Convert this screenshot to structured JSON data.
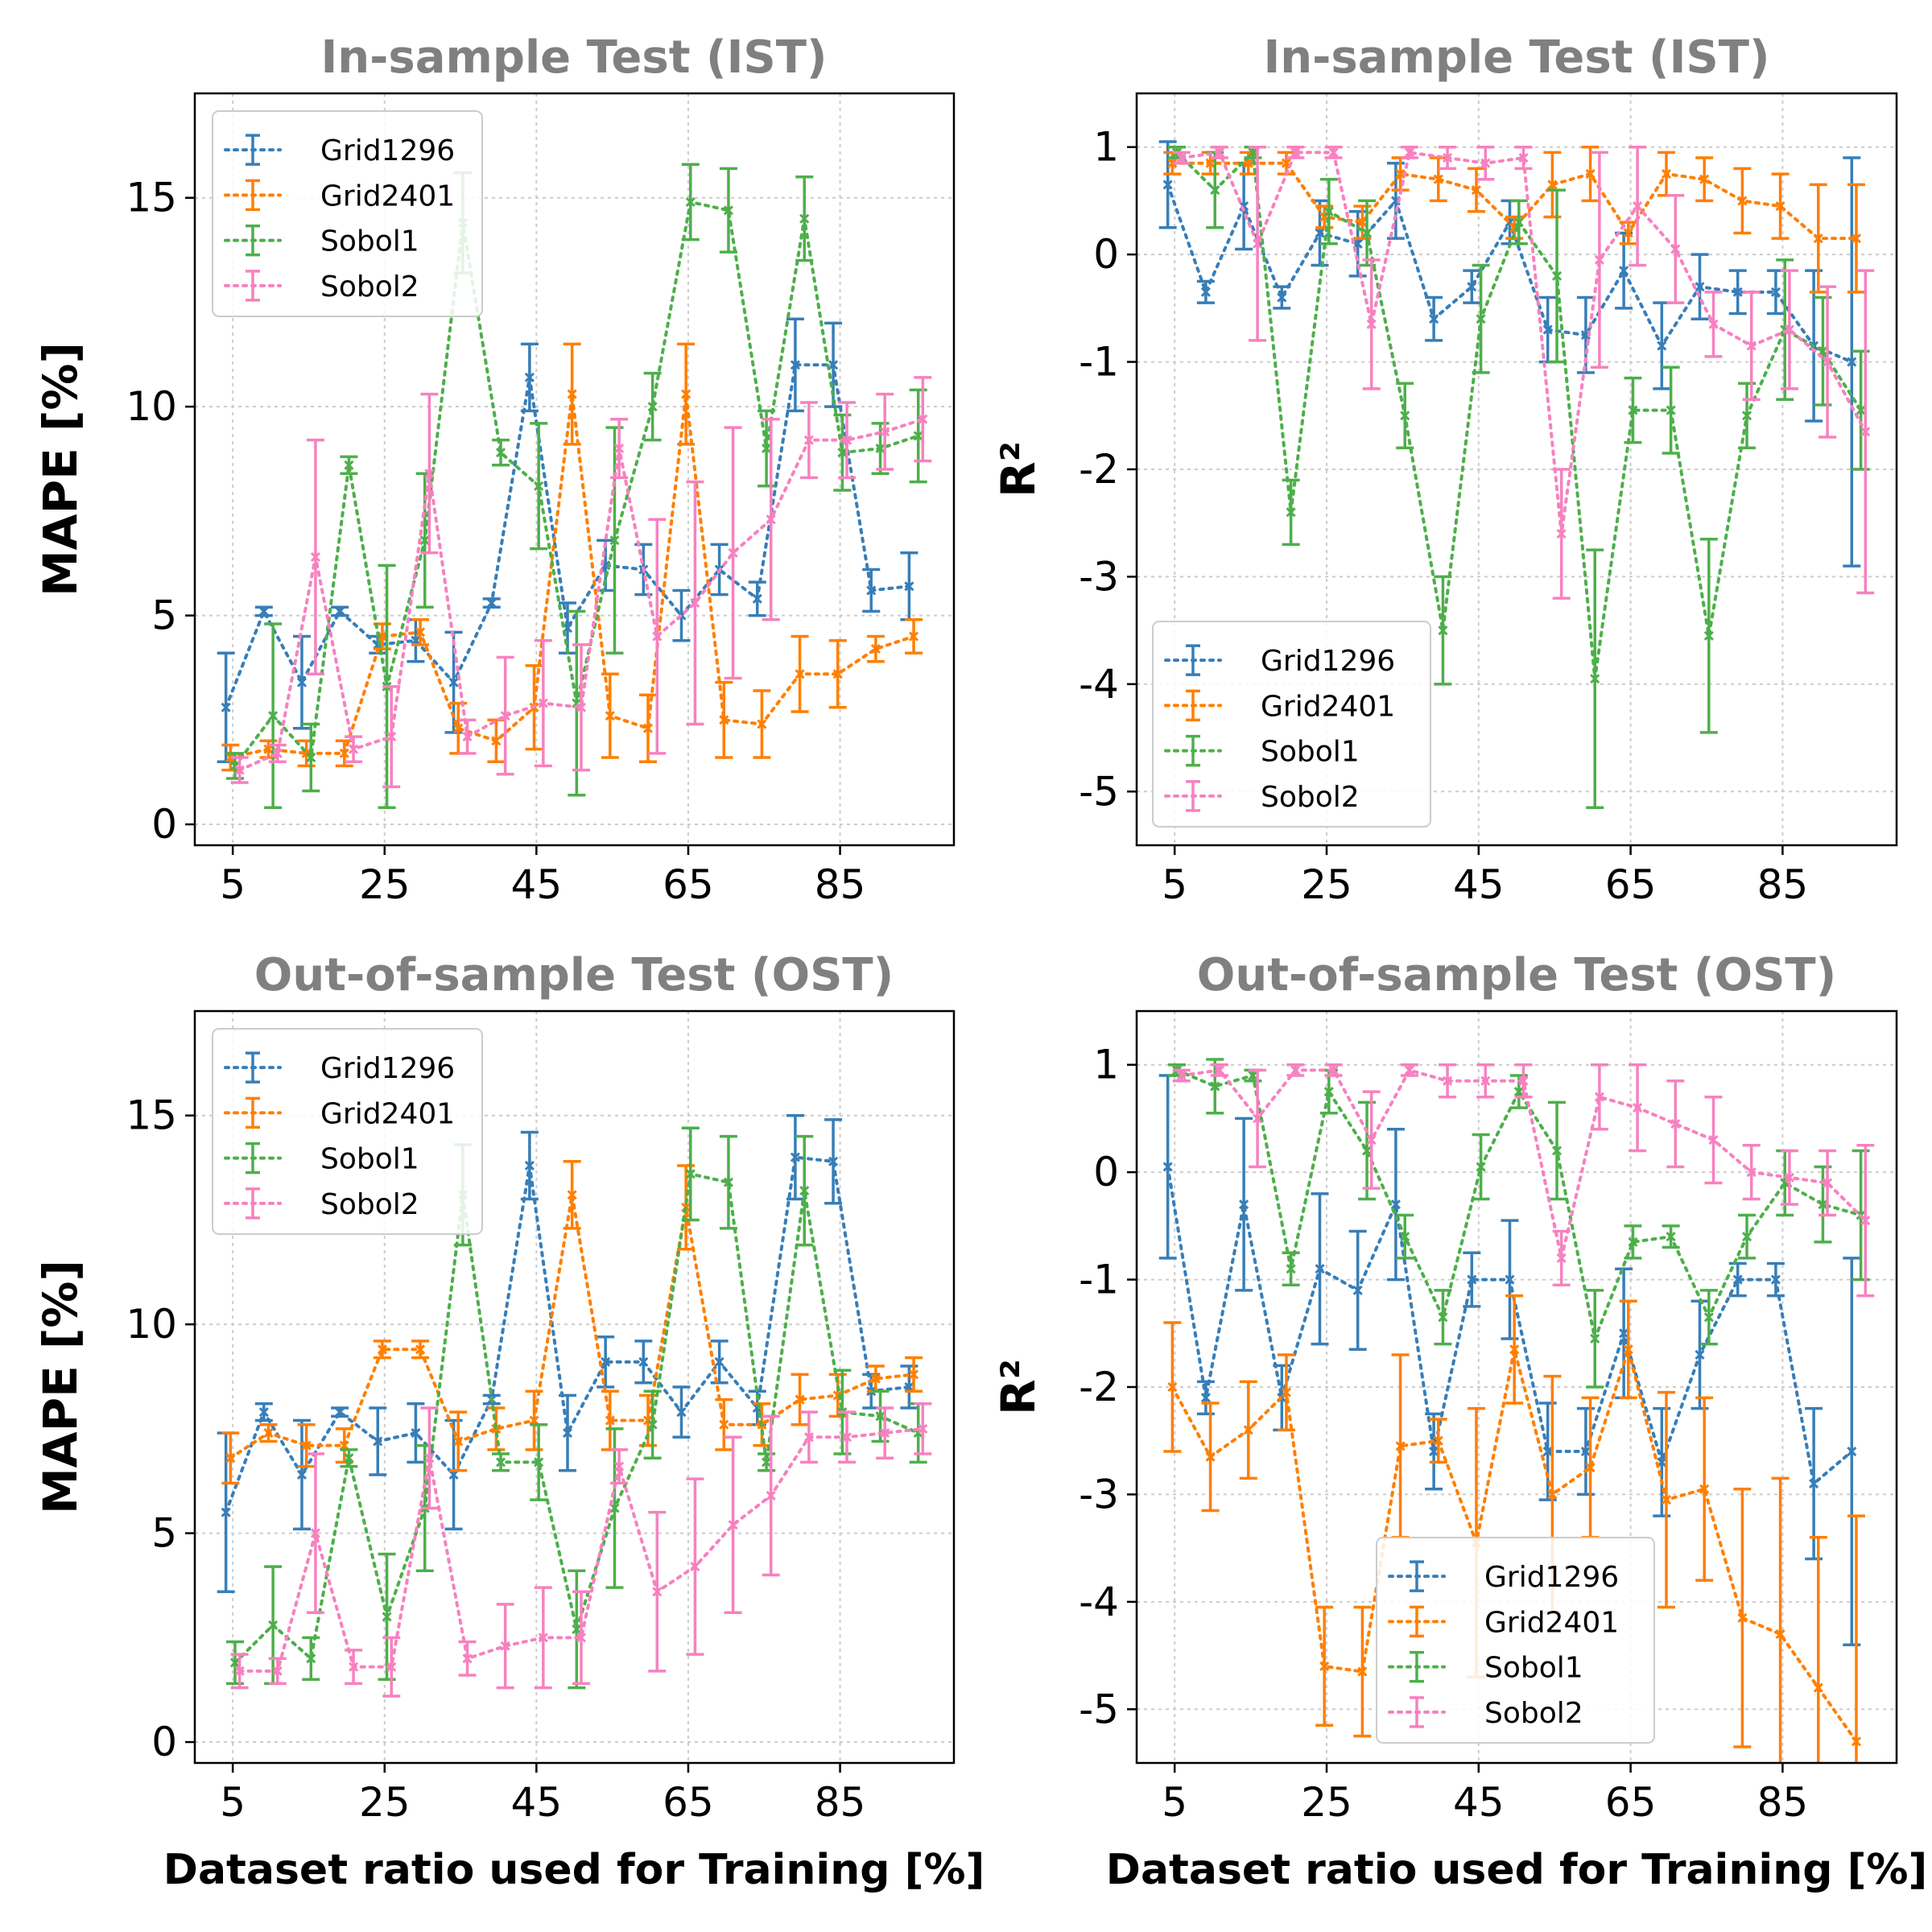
{
  "chart_data": [
    {
      "id": "ist_mape",
      "type": "line",
      "title": "In-sample Test (IST)",
      "ylabel": "MAPE [%]",
      "xlabel": "",
      "xlim": [
        0,
        100
      ],
      "ylim": [
        -0.5,
        17.5
      ],
      "xticks": [
        5,
        25,
        45,
        65,
        85
      ],
      "xtick_labels": [
        "5",
        "25",
        "45",
        "65",
        "85"
      ],
      "yticks": [
        0,
        5,
        10,
        15
      ],
      "ytick_labels": [
        "0",
        "5",
        "10",
        "15"
      ],
      "grid": true,
      "legend_position": "upper-left",
      "x": [
        5,
        10,
        15,
        20,
        25,
        30,
        35,
        40,
        45,
        50,
        55,
        60,
        65,
        70,
        75,
        80,
        85,
        90,
        95
      ],
      "series": [
        {
          "name": "Grid1296",
          "color": "#377eb8",
          "values": [
            2.8,
            5.1,
            3.4,
            5.1,
            4.3,
            4.4,
            3.4,
            5.3,
            10.7,
            4.7,
            6.2,
            6.1,
            5.0,
            6.1,
            5.4,
            11.0,
            11.0,
            5.6,
            5.7
          ],
          "errors": [
            1.3,
            0.1,
            1.1,
            0.1,
            0.2,
            0.5,
            1.2,
            0.1,
            0.8,
            0.6,
            0.6,
            0.6,
            0.6,
            0.6,
            0.4,
            1.1,
            1.0,
            0.5,
            0.8
          ]
        },
        {
          "name": "Grid2401",
          "color": "#ff7f00",
          "values": [
            1.6,
            1.8,
            1.7,
            1.7,
            4.5,
            4.6,
            2.3,
            2.0,
            2.8,
            10.3,
            2.6,
            2.3,
            10.3,
            2.5,
            2.4,
            3.6,
            3.6,
            4.2,
            4.5
          ],
          "errors": [
            0.3,
            0.2,
            0.3,
            0.3,
            0.3,
            0.3,
            0.6,
            0.5,
            1.0,
            1.2,
            1.0,
            0.8,
            1.2,
            0.9,
            0.8,
            0.9,
            0.8,
            0.3,
            0.4
          ]
        },
        {
          "name": "Sobol1",
          "color": "#4daf4a",
          "values": [
            1.4,
            2.6,
            1.6,
            8.6,
            3.3,
            6.8,
            14.4,
            8.9,
            8.1,
            2.9,
            6.8,
            10.0,
            14.9,
            14.7,
            9.0,
            14.5,
            8.9,
            9.0,
            9.3
          ],
          "errors": [
            0.3,
            2.2,
            0.8,
            0.2,
            2.9,
            1.6,
            1.2,
            0.3,
            1.5,
            2.2,
            2.7,
            0.8,
            0.9,
            1.0,
            0.9,
            1.0,
            0.9,
            0.6,
            1.1
          ]
        },
        {
          "name": "Sobol2",
          "color": "#f781bf",
          "values": [
            1.3,
            1.7,
            6.4,
            1.8,
            2.1,
            8.4,
            2.1,
            2.6,
            2.9,
            2.8,
            9.0,
            4.5,
            5.3,
            6.5,
            7.3,
            9.2,
            9.2,
            9.4,
            9.7
          ],
          "errors": [
            0.3,
            0.2,
            2.8,
            0.3,
            1.2,
            1.9,
            0.4,
            1.4,
            1.5,
            1.5,
            0.7,
            2.8,
            2.9,
            3.0,
            2.4,
            0.9,
            0.9,
            0.9,
            1.0
          ]
        }
      ]
    },
    {
      "id": "ist_r2",
      "type": "line",
      "title": "In-sample Test (IST)",
      "ylabel": "R²",
      "xlabel": "",
      "xlim": [
        0,
        100
      ],
      "ylim": [
        -5.5,
        1.5
      ],
      "xticks": [
        5,
        25,
        45,
        65,
        85
      ],
      "xtick_labels": [
        "5",
        "25",
        "45",
        "65",
        "85"
      ],
      "yticks": [
        1,
        0,
        -1,
        -2,
        -3,
        -4,
        -5
      ],
      "ytick_labels": [
        "1",
        "0",
        "-1",
        "-2",
        "-3",
        "-4",
        "-5"
      ],
      "grid": true,
      "legend_position": "lower-left",
      "x": [
        5,
        10,
        15,
        20,
        25,
        30,
        35,
        40,
        45,
        50,
        55,
        60,
        65,
        70,
        75,
        80,
        85,
        90,
        95
      ],
      "series": [
        {
          "name": "Grid1296",
          "color": "#377eb8",
          "values": [
            0.65,
            -0.35,
            0.45,
            -0.4,
            0.2,
            0.1,
            0.5,
            -0.6,
            -0.3,
            0.3,
            -0.7,
            -0.75,
            -0.15,
            -0.85,
            -0.3,
            -0.35,
            -0.35,
            -0.85,
            -1.0
          ],
          "errors": [
            0.4,
            0.1,
            0.4,
            0.1,
            0.3,
            0.3,
            0.35,
            0.2,
            0.15,
            0.2,
            0.3,
            0.35,
            0.35,
            0.4,
            0.3,
            0.2,
            0.2,
            0.7,
            1.9
          ]
        },
        {
          "name": "Grid2401",
          "color": "#ff7f00",
          "values": [
            0.85,
            0.85,
            0.85,
            0.85,
            0.35,
            0.3,
            0.75,
            0.7,
            0.6,
            0.25,
            0.65,
            0.75,
            0.2,
            0.75,
            0.7,
            0.5,
            0.45,
            0.15,
            0.15
          ],
          "errors": [
            0.1,
            0.1,
            0.1,
            0.1,
            0.1,
            0.15,
            0.15,
            0.2,
            0.2,
            0.1,
            0.3,
            0.25,
            0.1,
            0.2,
            0.2,
            0.3,
            0.3,
            0.5,
            0.5
          ]
        },
        {
          "name": "Sobol1",
          "color": "#4daf4a",
          "values": [
            0.95,
            0.6,
            0.95,
            -2.4,
            0.4,
            0.2,
            -1.5,
            -3.5,
            -0.6,
            0.3,
            -0.2,
            -3.95,
            -1.45,
            -1.45,
            -3.55,
            -1.5,
            -0.7,
            -0.9,
            -1.45
          ],
          "errors": [
            0.05,
            0.35,
            0.05,
            0.3,
            0.3,
            0.3,
            0.3,
            0.5,
            0.5,
            0.2,
            0.8,
            1.2,
            0.3,
            0.4,
            0.9,
            0.3,
            0.65,
            0.5,
            0.55
          ]
        },
        {
          "name": "Sobol2",
          "color": "#f781bf",
          "values": [
            0.9,
            0.95,
            0.1,
            0.95,
            0.95,
            -0.65,
            0.95,
            0.9,
            0.85,
            0.9,
            -2.6,
            -0.05,
            0.45,
            0.05,
            -0.65,
            -0.85,
            -0.7,
            -1.0,
            -1.65
          ],
          "errors": [
            0.05,
            0.05,
            0.9,
            0.05,
            0.05,
            0.6,
            0.05,
            0.1,
            0.15,
            0.1,
            0.6,
            1.0,
            0.55,
            0.5,
            0.3,
            0.5,
            0.55,
            0.7,
            1.5
          ]
        }
      ]
    },
    {
      "id": "ost_mape",
      "type": "line",
      "title": "Out-of-sample Test (OST)",
      "ylabel": "MAPE [%]",
      "xlabel": "Dataset ratio used for Training [%]",
      "xlim": [
        0,
        100
      ],
      "ylim": [
        -0.5,
        17.5
      ],
      "xticks": [
        5,
        25,
        45,
        65,
        85
      ],
      "xtick_labels": [
        "5",
        "25",
        "45",
        "65",
        "85"
      ],
      "yticks": [
        0,
        5,
        10,
        15
      ],
      "ytick_labels": [
        "0",
        "5",
        "10",
        "15"
      ],
      "grid": true,
      "legend_position": "upper-left",
      "x": [
        5,
        10,
        15,
        20,
        25,
        30,
        35,
        40,
        45,
        50,
        55,
        60,
        65,
        70,
        75,
        80,
        85,
        90,
        95
      ],
      "series": [
        {
          "name": "Grid1296",
          "color": "#377eb8",
          "values": [
            5.5,
            7.9,
            6.4,
            7.9,
            7.2,
            7.4,
            6.4,
            8.2,
            13.8,
            7.4,
            9.1,
            9.1,
            7.9,
            9.1,
            8.0,
            14.0,
            13.9,
            8.4,
            8.5
          ],
          "errors": [
            1.9,
            0.2,
            1.3,
            0.1,
            0.8,
            0.7,
            1.3,
            0.1,
            0.8,
            0.9,
            0.6,
            0.5,
            0.6,
            0.5,
            0.4,
            1.0,
            1.0,
            0.4,
            0.5
          ]
        },
        {
          "name": "Grid2401",
          "color": "#ff7f00",
          "values": [
            6.8,
            7.4,
            7.1,
            7.1,
            9.4,
            9.4,
            7.2,
            7.5,
            7.7,
            13.1,
            7.7,
            7.7,
            12.8,
            7.6,
            7.6,
            8.2,
            8.3,
            8.7,
            8.8
          ],
          "errors": [
            0.6,
            0.2,
            0.5,
            0.4,
            0.2,
            0.2,
            0.7,
            0.5,
            0.7,
            0.8,
            0.7,
            0.6,
            1.0,
            0.6,
            0.5,
            0.6,
            0.5,
            0.3,
            0.4
          ]
        },
        {
          "name": "Sobol1",
          "color": "#4daf4a",
          "values": [
            1.9,
            2.8,
            2.0,
            6.8,
            3.0,
            5.6,
            13.1,
            6.7,
            6.7,
            2.7,
            5.6,
            7.6,
            13.6,
            13.4,
            6.7,
            13.2,
            7.9,
            7.8,
            7.4
          ],
          "errors": [
            0.5,
            1.4,
            0.5,
            0.2,
            1.5,
            1.5,
            1.2,
            0.2,
            0.9,
            1.4,
            1.9,
            0.8,
            1.1,
            1.1,
            0.2,
            1.3,
            1.0,
            0.6,
            0.7
          ]
        },
        {
          "name": "Sobol2",
          "color": "#f781bf",
          "values": [
            1.7,
            1.7,
            5.0,
            1.8,
            1.8,
            6.8,
            2.0,
            2.3,
            2.5,
            2.5,
            6.6,
            3.6,
            4.2,
            5.2,
            5.9,
            7.3,
            7.3,
            7.4,
            7.5
          ],
          "errors": [
            0.4,
            0.3,
            1.9,
            0.4,
            0.7,
            1.2,
            0.4,
            1.0,
            1.2,
            1.1,
            0.4,
            1.9,
            2.1,
            2.1,
            1.9,
            0.6,
            0.6,
            0.6,
            0.6
          ]
        }
      ]
    },
    {
      "id": "ost_r2",
      "type": "line",
      "title": "Out-of-sample Test (OST)",
      "ylabel": "R²",
      "xlabel": "Dataset ratio used for Training [%]",
      "xlim": [
        0,
        100
      ],
      "ylim": [
        -5.5,
        1.5
      ],
      "xticks": [
        5,
        25,
        45,
        65,
        85
      ],
      "xtick_labels": [
        "5",
        "25",
        "45",
        "65",
        "85"
      ],
      "yticks": [
        1,
        0,
        -1,
        -2,
        -3,
        -4,
        -5
      ],
      "ytick_labels": [
        "1",
        "0",
        "-1",
        "-2",
        "-3",
        "-4",
        "-5"
      ],
      "grid": true,
      "legend_position": "lower-center",
      "x": [
        5,
        10,
        15,
        20,
        25,
        30,
        35,
        40,
        45,
        50,
        55,
        60,
        65,
        70,
        75,
        80,
        85,
        90,
        95
      ],
      "series": [
        {
          "name": "Grid1296",
          "color": "#377eb8",
          "values": [
            0.05,
            -2.1,
            -0.3,
            -2.1,
            -0.9,
            -1.1,
            -0.3,
            -2.6,
            -1.0,
            -1.0,
            -2.6,
            -2.6,
            -1.5,
            -2.7,
            -1.7,
            -1.0,
            -1.0,
            -2.9,
            -2.6
          ],
          "errors": [
            0.85,
            0.15,
            0.8,
            0.3,
            0.7,
            0.55,
            0.7,
            0.35,
            0.25,
            0.55,
            0.45,
            0.4,
            0.6,
            0.5,
            0.5,
            0.15,
            0.15,
            0.7,
            1.8
          ]
        },
        {
          "name": "Grid2401",
          "color": "#ff7f00",
          "values": [
            -2.0,
            -2.65,
            -2.4,
            -2.05,
            -4.6,
            -4.65,
            -2.55,
            -2.5,
            -3.45,
            -1.65,
            -3.0,
            -2.75,
            -1.65,
            -3.05,
            -2.95,
            -4.15,
            -4.3,
            -4.8,
            -5.3
          ],
          "errors": [
            0.6,
            0.5,
            0.45,
            0.35,
            0.55,
            0.6,
            0.85,
            0.2,
            1.25,
            0.5,
            1.1,
            0.65,
            0.45,
            1.0,
            0.85,
            1.2,
            1.45,
            1.4,
            2.1
          ]
        },
        {
          "name": "Sobol1",
          "color": "#4daf4a",
          "values": [
            0.95,
            0.8,
            0.9,
            -0.9,
            0.75,
            0.2,
            -0.6,
            -1.35,
            0.05,
            0.75,
            0.2,
            -1.55,
            -0.65,
            -0.6,
            -1.35,
            -0.6,
            -0.1,
            -0.3,
            -0.4
          ],
          "errors": [
            0.05,
            0.25,
            0.05,
            0.15,
            0.2,
            0.45,
            0.2,
            0.25,
            0.3,
            0.15,
            0.45,
            0.45,
            0.15,
            0.1,
            0.25,
            0.2,
            0.3,
            0.35,
            0.6
          ]
        },
        {
          "name": "Sobol2",
          "color": "#f781bf",
          "values": [
            0.9,
            0.95,
            0.5,
            0.95,
            0.95,
            0.3,
            0.95,
            0.85,
            0.85,
            0.85,
            -0.8,
            0.7,
            0.6,
            0.45,
            0.3,
            0.0,
            -0.05,
            -0.1,
            -0.45
          ],
          "errors": [
            0.05,
            0.05,
            0.45,
            0.05,
            0.05,
            0.45,
            0.05,
            0.15,
            0.15,
            0.15,
            0.25,
            0.3,
            0.4,
            0.4,
            0.4,
            0.25,
            0.25,
            0.3,
            0.7
          ]
        }
      ]
    }
  ]
}
